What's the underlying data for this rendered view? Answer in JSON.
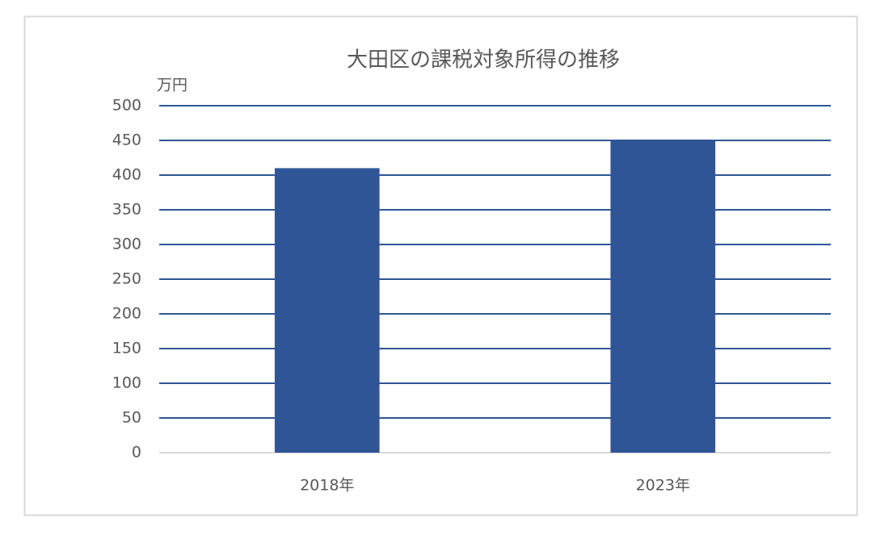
{
  "chart_data": {
    "type": "bar",
    "title": "大田区の課税対象所得の推移",
    "y_label": "万円",
    "categories": [
      "2018年",
      "2023年"
    ],
    "values": [
      410,
      449
    ],
    "color": "#2f5597",
    "ylim": [
      0,
      500
    ],
    "yticks": [
      0,
      50,
      100,
      150,
      200,
      250,
      300,
      350,
      400,
      450,
      500
    ],
    "grid": true,
    "grid_color": "#2f5597"
  }
}
